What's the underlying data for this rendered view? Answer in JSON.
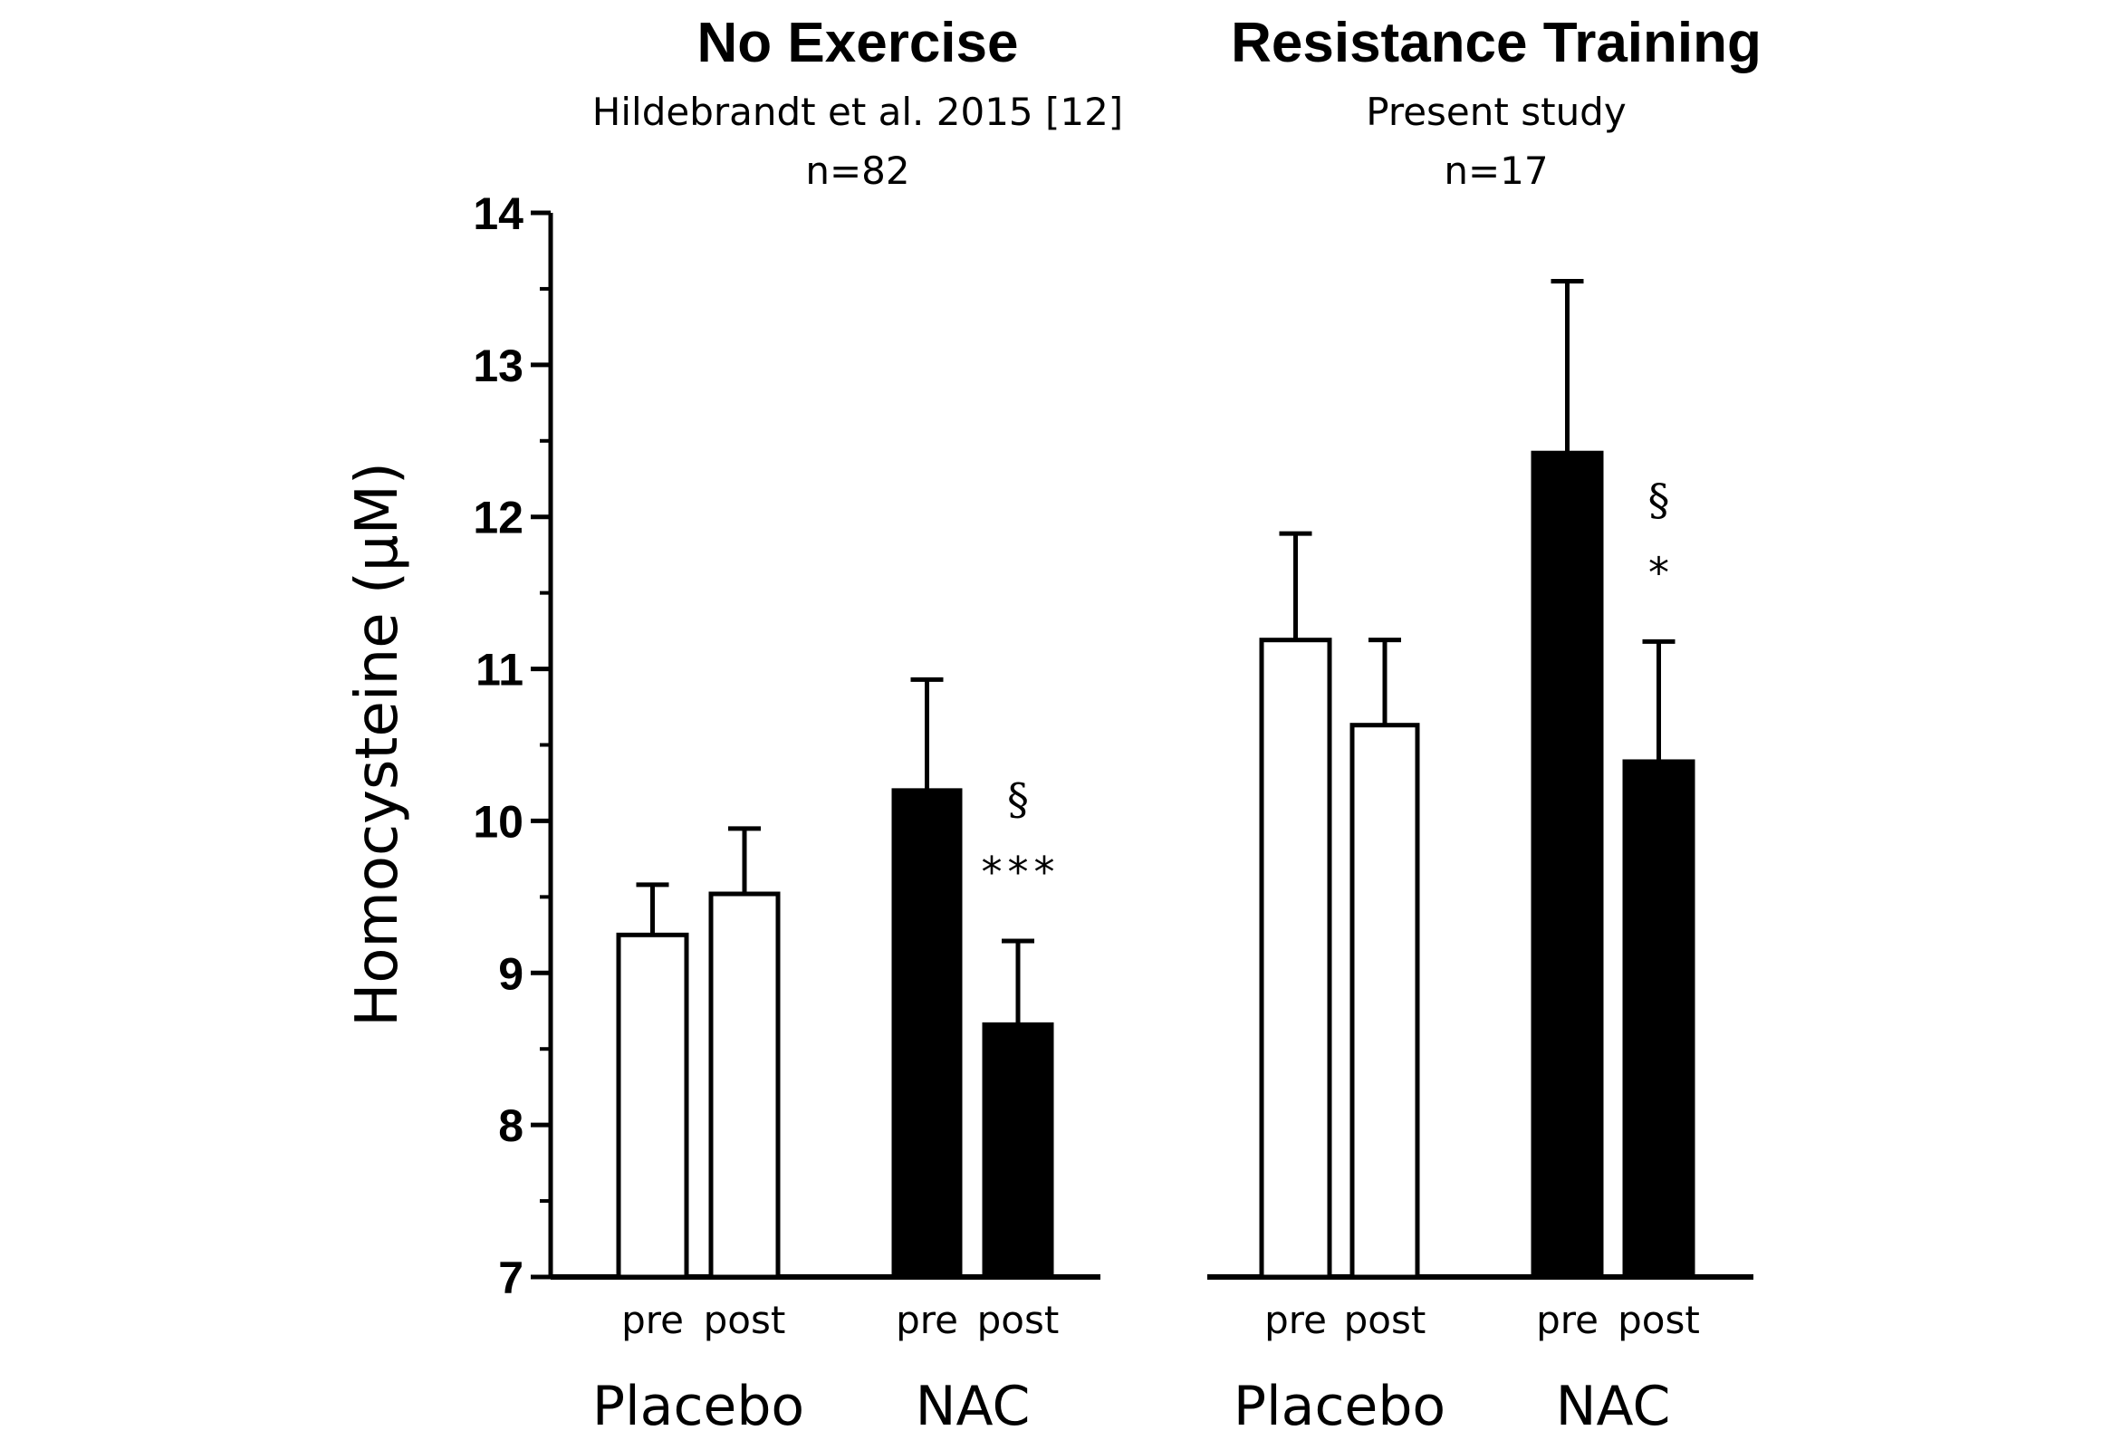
{
  "chart_data": {
    "type": "bar",
    "ylabel": "Homocysteine  (µM)",
    "ylim": [
      7,
      14
    ],
    "yticks": [
      7,
      8,
      9,
      10,
      11,
      12,
      13,
      14
    ],
    "fill_colors": {
      "Placebo": "#ffffff",
      "NAC": "#000000"
    },
    "panels": [
      {
        "title": "No Exercise",
        "subtitle": "Hildebrandt et al. 2015 [12]",
        "n_label": "n=82",
        "groups": [
          {
            "label": "Placebo",
            "bars": [
              {
                "category": "pre",
                "value": 9.25,
                "error": 0.33
              },
              {
                "category": "post",
                "value": 9.52,
                "error": 0.43
              }
            ]
          },
          {
            "label": "NAC",
            "bars": [
              {
                "category": "pre",
                "value": 10.2,
                "error": 0.73
              },
              {
                "category": "post",
                "value": 8.66,
                "error": 0.55,
                "annotations": [
                  "§",
                  "***"
                ]
              }
            ]
          }
        ]
      },
      {
        "title": "Resistance Training",
        "subtitle": "Present study",
        "n_label": "n=17",
        "groups": [
          {
            "label": "Placebo",
            "bars": [
              {
                "category": "pre",
                "value": 11.19,
                "error": 0.7
              },
              {
                "category": "post",
                "value": 10.63,
                "error": 0.56
              }
            ]
          },
          {
            "label": "NAC",
            "bars": [
              {
                "category": "pre",
                "value": 12.42,
                "error": 1.13
              },
              {
                "category": "post",
                "value": 10.39,
                "error": 0.79,
                "annotations": [
                  "§",
                  "*"
                ]
              }
            ]
          }
        ]
      }
    ]
  }
}
